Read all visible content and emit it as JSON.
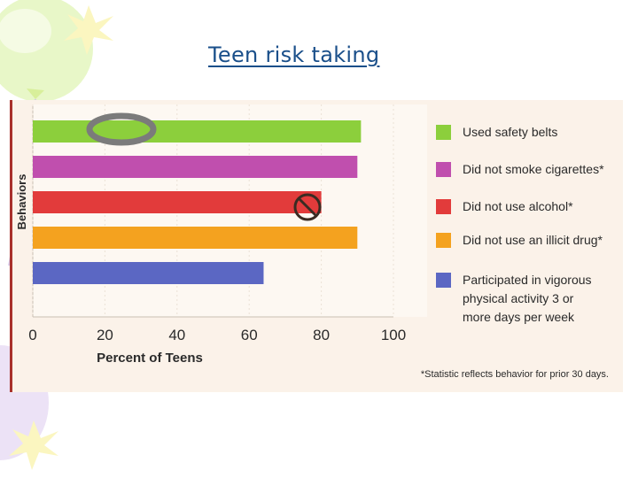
{
  "slide": {
    "title": "Teen risk taking"
  },
  "chart_data": {
    "type": "bar",
    "orientation": "horizontal",
    "categories": [
      "Used safety belts",
      "Did not smoke cigarettes*",
      "Did not use alcohol*",
      "Did not use an illicit drug*",
      "Participated in vigorous physical activity 3 or more days per week"
    ],
    "values": [
      91,
      90,
      80,
      90,
      64
    ],
    "colors": [
      "#8ccf3c",
      "#c04fae",
      "#e23b3b",
      "#f4a21f",
      "#5b67c3"
    ],
    "xlabel": "Percent of Teens",
    "ylabel": "Behaviors",
    "xlim": [
      0,
      100
    ],
    "xticks": [
      "0",
      "20",
      "40",
      "60",
      "80",
      "100"
    ],
    "legend_position": "right",
    "legend": [
      {
        "label": "Used safety belts",
        "lines": [
          "Used safety belts"
        ]
      },
      {
        "label": "Did not smoke cigarettes*",
        "lines": [
          "Did not smoke cigarettes*"
        ]
      },
      {
        "label": "Did not use alcohol*",
        "lines": [
          "Did not use alcohol*"
        ]
      },
      {
        "label": "Did not use an illicit drug*",
        "lines": [
          "Did not use an illicit drug*"
        ]
      },
      {
        "label": "Participated in vigorous physical activity 3 or more days per week",
        "lines": [
          "Participated in vigorous",
          "physical activity 3 or",
          "more days per week"
        ]
      }
    ],
    "footnote": "*Statistic reflects behavior for prior 30 days."
  }
}
